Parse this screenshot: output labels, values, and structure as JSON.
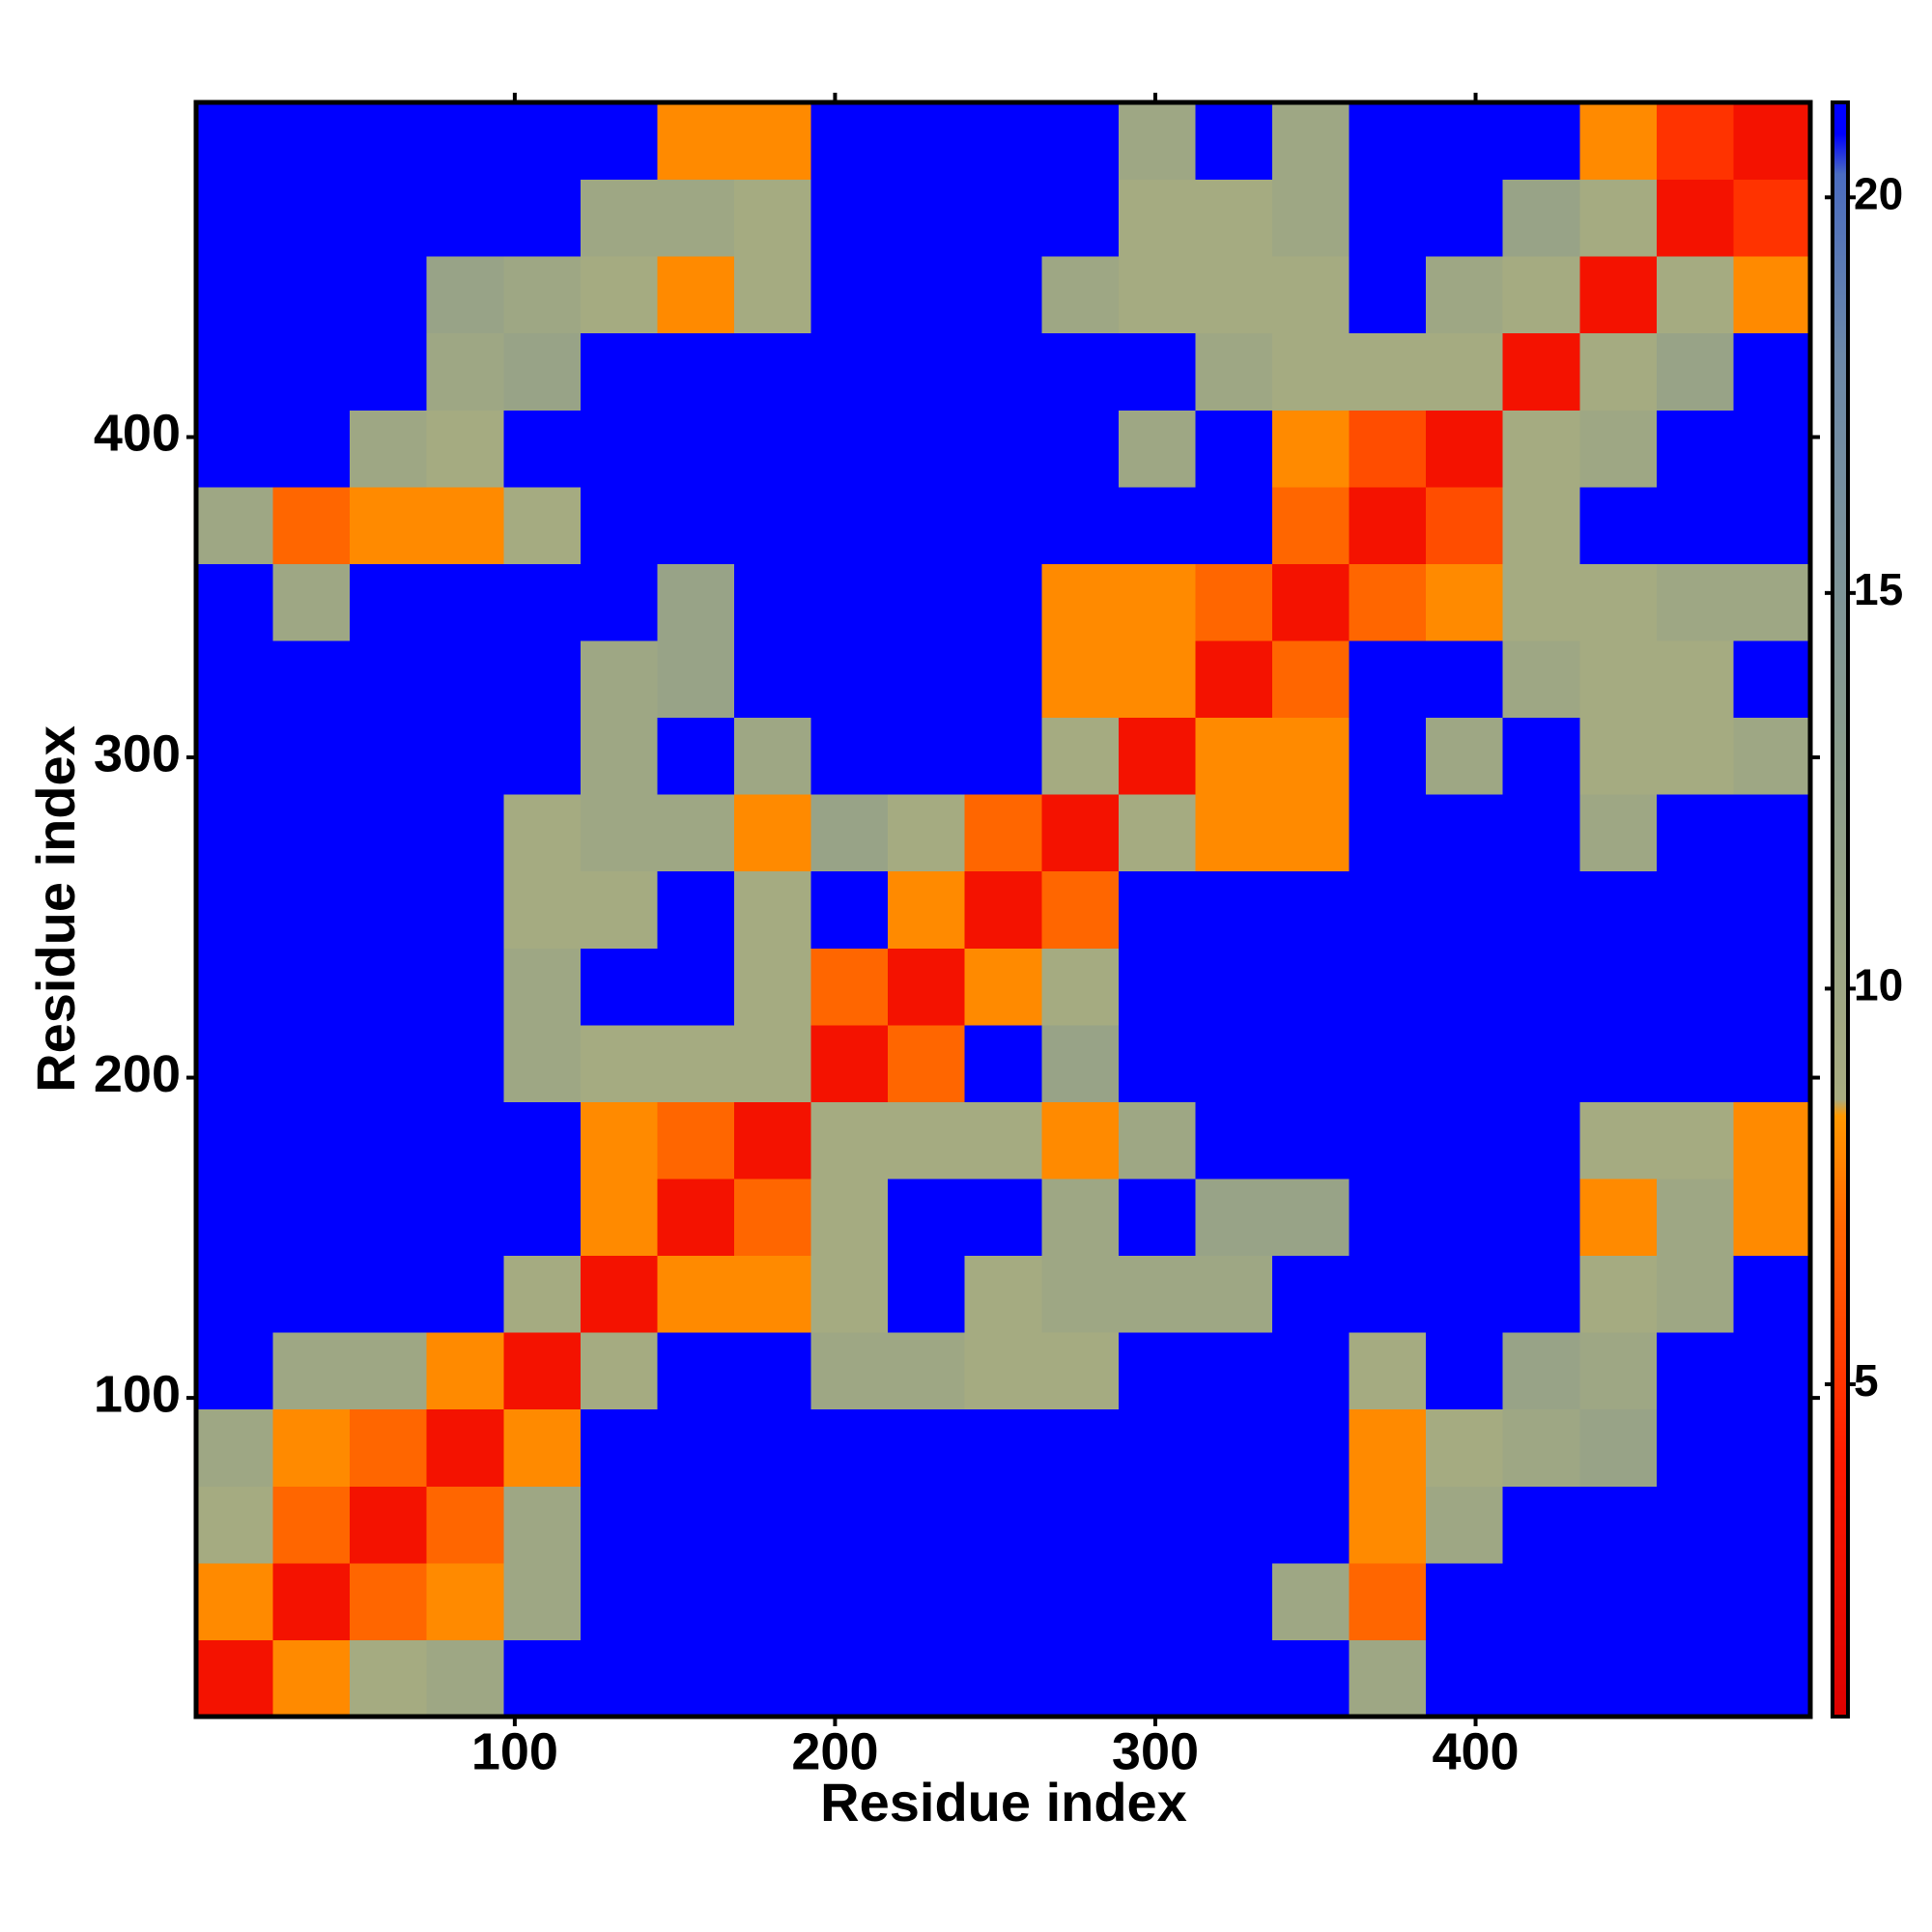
{
  "chart_data": {
    "type": "heatmap",
    "xlabel": "Residue index",
    "ylabel": "Residue index",
    "xlim": [
      0.5,
      504.5
    ],
    "ylim": [
      0.5,
      504.5
    ],
    "xticks": [
      100,
      200,
      300,
      400
    ],
    "yticks": [
      100,
      200,
      300,
      400
    ],
    "x_edges": [
      0.5,
      24.5,
      48.5,
      72.5,
      96.5,
      120.5,
      144.5,
      168.5,
      192.5,
      216.5,
      240.5,
      264.5,
      288.5,
      312.5,
      336.5,
      360.5,
      384.5,
      408.5,
      432.5,
      456.5,
      480.5,
      504.5
    ],
    "y_edges": [
      0.5,
      24.5,
      48.5,
      72.5,
      96.5,
      120.5,
      144.5,
      168.5,
      192.5,
      216.5,
      240.5,
      264.5,
      288.5,
      312.5,
      336.5,
      360.5,
      384.5,
      408.5,
      432.5,
      456.5,
      480.5,
      504.5
    ],
    "z": [
      [
        3,
        8,
        9,
        10,
        21,
        21,
        21,
        21,
        21,
        21,
        21,
        21,
        21,
        21,
        21,
        10,
        21,
        21,
        21,
        21,
        21
      ],
      [
        8,
        3,
        7,
        8,
        10,
        21,
        21,
        21,
        21,
        21,
        21,
        21,
        21,
        21,
        10,
        7,
        21,
        21,
        21,
        21,
        21
      ],
      [
        9,
        7,
        3,
        7,
        10,
        21,
        21,
        21,
        21,
        21,
        21,
        21,
        21,
        21,
        21,
        8,
        10,
        21,
        21,
        21,
        21
      ],
      [
        10,
        8,
        7,
        3,
        8,
        21,
        21,
        21,
        21,
        21,
        21,
        21,
        21,
        21,
        21,
        8,
        9,
        10,
        11,
        21,
        21
      ],
      [
        21,
        10,
        10,
        8,
        3,
        9,
        21,
        21,
        10,
        10,
        9,
        9,
        21,
        21,
        21,
        9,
        21,
        11,
        10,
        21,
        21
      ],
      [
        21,
        21,
        21,
        21,
        9,
        3,
        8,
        8,
        9,
        21,
        9,
        10,
        10,
        10,
        21,
        21,
        21,
        21,
        9,
        10,
        21
      ],
      [
        21,
        21,
        21,
        21,
        21,
        8,
        3,
        7,
        9,
        21,
        21,
        10,
        21,
        11,
        11,
        21,
        21,
        21,
        8,
        10,
        8
      ],
      [
        21,
        21,
        21,
        21,
        21,
        8,
        7,
        3,
        9,
        9,
        9,
        8,
        10,
        21,
        21,
        21,
        21,
        21,
        9,
        9,
        8
      ],
      [
        21,
        21,
        21,
        21,
        10,
        9,
        9,
        9,
        3,
        7,
        21,
        11,
        21,
        21,
        21,
        21,
        21,
        21,
        21,
        21,
        21
      ],
      [
        21,
        21,
        21,
        21,
        10,
        21,
        21,
        9,
        7,
        3,
        8,
        9,
        21,
        21,
        21,
        21,
        21,
        21,
        21,
        21,
        21
      ],
      [
        21,
        21,
        21,
        21,
        9,
        9,
        21,
        9,
        21,
        8,
        3,
        7,
        21,
        21,
        21,
        21,
        21,
        21,
        21,
        21,
        21
      ],
      [
        21,
        21,
        21,
        21,
        9,
        10,
        10,
        8,
        11,
        9,
        7,
        3,
        9,
        8,
        8,
        21,
        21,
        21,
        10,
        21,
        21
      ],
      [
        21,
        21,
        21,
        21,
        21,
        10,
        21,
        10,
        21,
        21,
        21,
        9,
        3,
        8,
        8,
        21,
        10,
        21,
        9,
        9,
        10
      ],
      [
        21,
        21,
        21,
        21,
        21,
        10,
        11,
        21,
        21,
        21,
        21,
        8,
        8,
        3,
        7,
        21,
        21,
        10,
        9,
        9,
        21
      ],
      [
        21,
        10,
        21,
        21,
        21,
        21,
        11,
        21,
        21,
        21,
        21,
        8,
        8,
        7,
        3,
        7,
        8,
        9,
        9,
        10,
        10
      ],
      [
        10,
        7,
        8,
        8,
        9,
        21,
        21,
        21,
        21,
        21,
        21,
        21,
        21,
        21,
        7,
        3,
        6,
        9,
        21,
        21,
        21
      ],
      [
        21,
        21,
        10,
        9,
        21,
        21,
        21,
        21,
        21,
        21,
        21,
        21,
        10,
        21,
        8,
        6,
        3,
        9,
        10,
        21,
        21
      ],
      [
        21,
        21,
        21,
        10,
        11,
        21,
        21,
        21,
        21,
        21,
        21,
        21,
        21,
        10,
        9,
        9,
        9,
        3,
        9,
        11,
        21
      ],
      [
        21,
        21,
        21,
        11,
        10,
        9,
        8,
        9,
        21,
        21,
        21,
        10,
        9,
        9,
        9,
        21,
        10,
        9,
        3,
        9,
        8
      ],
      [
        21,
        21,
        21,
        21,
        21,
        10,
        10,
        9,
        21,
        21,
        21,
        21,
        9,
        9,
        10,
        21,
        21,
        11,
        9,
        3,
        5
      ],
      [
        21,
        21,
        21,
        21,
        21,
        21,
        8,
        8,
        21,
        21,
        21,
        21,
        10,
        21,
        10,
        21,
        21,
        21,
        8,
        5,
        3
      ]
    ],
    "clim": [
      0.8,
      21.2
    ],
    "cticks": [
      5,
      10,
      15,
      20
    ],
    "colorscale": [
      {
        "at": 0.8,
        "color": "#dd0000"
      },
      {
        "at": 4,
        "color": "#ff1a00"
      },
      {
        "at": 7,
        "color": "#ff6600"
      },
      {
        "at": 8.4,
        "color": "#ff9900"
      },
      {
        "at": 8.6,
        "color": "#a8ac80"
      },
      {
        "at": 13,
        "color": "#8a9c8c"
      },
      {
        "at": 18,
        "color": "#6c88a8"
      },
      {
        "at": 20.3,
        "color": "#4a6cc0"
      },
      {
        "at": 20.8,
        "color": "#0000ff"
      },
      {
        "at": 21.2,
        "color": "#0000ff"
      }
    ]
  }
}
